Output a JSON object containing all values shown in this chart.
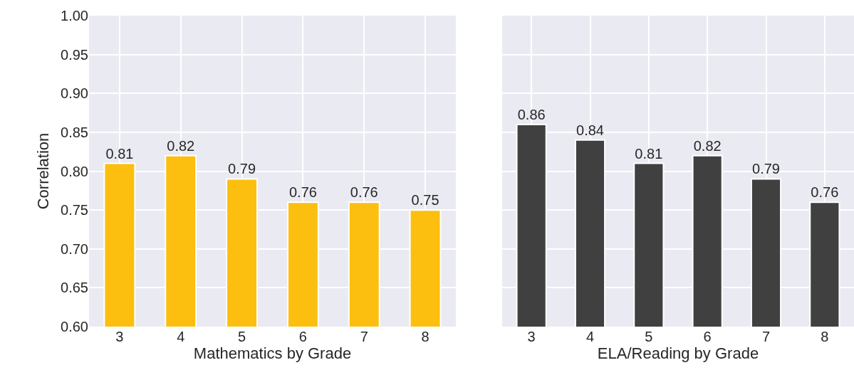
{
  "chart_data": [
    {
      "type": "bar",
      "xlabel": "Mathematics by Grade",
      "ylabel": "Correlation",
      "categories": [
        "3",
        "4",
        "5",
        "6",
        "7",
        "8"
      ],
      "values": [
        0.81,
        0.82,
        0.79,
        0.76,
        0.76,
        0.75
      ],
      "color": "#fcbf0f",
      "ylim": [
        0.6,
        1.0
      ],
      "yticks": [
        {
          "value": 0.6,
          "label": "0.60"
        },
        {
          "value": 0.65,
          "label": "0.65"
        },
        {
          "value": 0.7,
          "label": "0.70"
        },
        {
          "value": 0.75,
          "label": "0.75"
        },
        {
          "value": 0.8,
          "label": "0.80"
        },
        {
          "value": 0.85,
          "label": "0.85"
        },
        {
          "value": 0.9,
          "label": "0.90"
        },
        {
          "value": 0.95,
          "label": "0.95"
        },
        {
          "value": 1.0,
          "label": "1.00"
        }
      ],
      "grid": true,
      "data_labels": true
    },
    {
      "type": "bar",
      "xlabel": "ELA/Reading by Grade",
      "categories": [
        "3",
        "4",
        "5",
        "6",
        "7",
        "8"
      ],
      "values": [
        0.86,
        0.84,
        0.81,
        0.82,
        0.79,
        0.76
      ],
      "color": "#404040",
      "ylim": [
        0.6,
        1.0
      ],
      "yticks": [
        0.6,
        0.65,
        0.7,
        0.75,
        0.8,
        0.85,
        0.9,
        0.95,
        1.0
      ],
      "grid": true,
      "data_labels": true,
      "tick_labels": "x"
    }
  ]
}
